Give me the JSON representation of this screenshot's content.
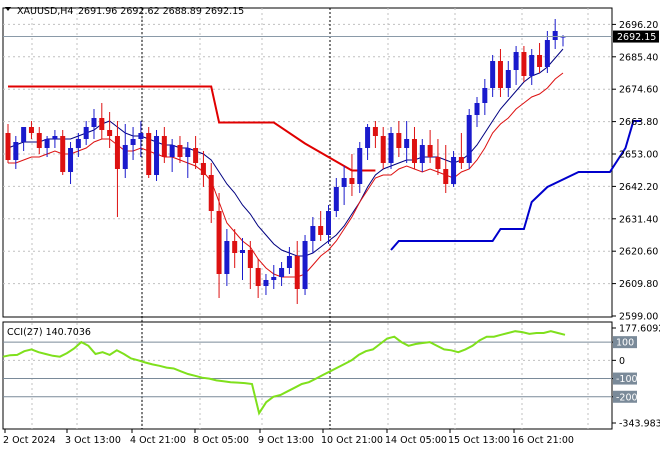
{
  "header": {
    "symbol": "XAUUSD,H4",
    "ohlc": "2691.96 2692.62 2688.89 2692.15"
  },
  "cci_panel": {
    "title": "CCI(27) 140.7036"
  },
  "colors": {
    "bull": "#1a1acc",
    "bear": "#dd1111",
    "sar_red": "#e00000",
    "sar_blue": "#0000cc",
    "ma_fast": "#dd1111",
    "ma_slow": "#000080",
    "cci": "#7fe01c",
    "level_line": "#7a8a99",
    "grid": "#c0c0c0",
    "tag_bg": "#000000"
  },
  "chart_data": [
    {
      "type": "candlestick",
      "title": "XAUUSD,H4",
      "ylim": [
        2599.0,
        2698.0
      ],
      "y_ticks": [
        "2696.20",
        "2685.40",
        "2674.60",
        "2663.80",
        "2653.00",
        "2642.20",
        "2631.40",
        "2620.60",
        "2609.80",
        "2599.00"
      ],
      "last_price": "2692.15",
      "x_ticks": [
        "2 Oct 2024",
        "3 Oct 13:00",
        "4 Oct 21:00",
        "8 Oct 05:00",
        "9 Oct 13:00",
        "10 Oct 21:00",
        "14 Oct 05:00",
        "15 Oct 13:00",
        "16 Oct 21:00"
      ],
      "candles": [
        [
          2660,
          2663,
          2650,
          2651
        ],
        [
          2651,
          2659,
          2648,
          2657
        ],
        [
          2657,
          2662,
          2654,
          2662
        ],
        [
          2662,
          2664,
          2658,
          2660
        ],
        [
          2660,
          2662,
          2653,
          2655
        ],
        [
          2655,
          2659,
          2652,
          2658
        ],
        [
          2658,
          2661,
          2655,
          2659
        ],
        [
          2659,
          2661,
          2646,
          2647
        ],
        [
          2647,
          2657,
          2643,
          2655
        ],
        [
          2655,
          2660,
          2652,
          2658
        ],
        [
          2658,
          2664,
          2656,
          2662
        ],
        [
          2662,
          2668,
          2658,
          2665
        ],
        [
          2665,
          2670,
          2658,
          2661
        ],
        [
          2661,
          2667,
          2655,
          2659
        ],
        [
          2659,
          2664,
          2632,
          2648
        ],
        [
          2648,
          2663,
          2645,
          2656
        ],
        [
          2656,
          2662,
          2651,
          2658
        ],
        [
          2658,
          2664,
          2652,
          2660
        ],
        [
          2660,
          2662,
          2645,
          2646
        ],
        [
          2646,
          2661,
          2644,
          2659
        ],
        [
          2659,
          2662,
          2650,
          2652
        ],
        [
          2652,
          2658,
          2647,
          2656
        ],
        [
          2656,
          2659,
          2650,
          2652
        ],
        [
          2652,
          2657,
          2645,
          2655
        ],
        [
          2655,
          2659,
          2648,
          2650
        ],
        [
          2650,
          2654,
          2642,
          2646
        ],
        [
          2646,
          2650,
          2630,
          2634
        ],
        [
          2634,
          2640,
          2605,
          2613
        ],
        [
          2613,
          2628,
          2609,
          2624
        ],
        [
          2624,
          2628,
          2615,
          2620
        ],
        [
          2620,
          2625,
          2611,
          2621
        ],
        [
          2621,
          2624,
          2608,
          2615
        ],
        [
          2615,
          2618,
          2605,
          2609
        ],
        [
          2609,
          2613,
          2606,
          2611
        ],
        [
          2611,
          2616,
          2608,
          2612
        ],
        [
          2612,
          2617,
          2609,
          2615
        ],
        [
          2615,
          2622,
          2613,
          2619
        ],
        [
          2619,
          2624,
          2603,
          2608
        ],
        [
          2608,
          2626,
          2606,
          2624
        ],
        [
          2624,
          2632,
          2620,
          2629
        ],
        [
          2629,
          2634,
          2624,
          2626
        ],
        [
          2626,
          2636,
          2623,
          2634
        ],
        [
          2634,
          2645,
          2632,
          2642
        ],
        [
          2642,
          2649,
          2636,
          2645
        ],
        [
          2645,
          2653,
          2639,
          2643
        ],
        [
          2643,
          2657,
          2640,
          2655
        ],
        [
          2655,
          2663,
          2651,
          2662
        ],
        [
          2662,
          2664,
          2655,
          2659
        ],
        [
          2659,
          2662,
          2648,
          2650
        ],
        [
          2650,
          2662,
          2648,
          2660
        ],
        [
          2660,
          2664,
          2652,
          2655
        ],
        [
          2655,
          2664,
          2650,
          2658
        ],
        [
          2658,
          2662,
          2648,
          2650
        ],
        [
          2650,
          2658,
          2647,
          2656
        ],
        [
          2656,
          2661,
          2650,
          2652
        ],
        [
          2652,
          2658,
          2646,
          2648
        ],
        [
          2648,
          2656,
          2640,
          2643
        ],
        [
          2643,
          2654,
          2642,
          2652
        ],
        [
          2652,
          2660,
          2648,
          2650
        ],
        [
          2650,
          2668,
          2648,
          2666
        ],
        [
          2666,
          2672,
          2662,
          2670
        ],
        [
          2670,
          2678,
          2666,
          2675
        ],
        [
          2675,
          2686,
          2672,
          2684
        ],
        [
          2684,
          2688,
          2672,
          2675
        ],
        [
          2675,
          2684,
          2672,
          2681
        ],
        [
          2681,
          2689,
          2676,
          2687
        ],
        [
          2687,
          2689,
          2677,
          2679
        ],
        [
          2679,
          2688,
          2676,
          2686
        ],
        [
          2686,
          2690,
          2680,
          2682
        ],
        [
          2682,
          2694,
          2680,
          2691
        ],
        [
          2691,
          2698,
          2688,
          2694
        ],
        [
          2691.96,
          2692.62,
          2688.89,
          2692.15
        ]
      ],
      "ma_fast": [
        2650,
        2650,
        2651,
        2652,
        2652,
        2653,
        2654,
        2653,
        2653,
        2654,
        2655,
        2657,
        2658,
        2658,
        2656,
        2654,
        2654,
        2655,
        2654,
        2653,
        2652,
        2652,
        2651,
        2650,
        2649,
        2647,
        2644,
        2637,
        2630,
        2627,
        2624,
        2622,
        2618,
        2615,
        2613,
        2612,
        2612,
        2612,
        2613,
        2616,
        2619,
        2621,
        2624,
        2628,
        2632,
        2637,
        2641,
        2645,
        2646,
        2646,
        2648,
        2649,
        2648,
        2647,
        2648,
        2647,
        2646,
        2645,
        2647,
        2648,
        2651,
        2655,
        2660,
        2663,
        2665,
        2668,
        2670,
        2672,
        2673,
        2675,
        2678,
        2680
      ],
      "ma_slow": [
        2655,
        2656,
        2657,
        2657,
        2657,
        2658,
        2658,
        2658,
        2658,
        2659,
        2660,
        2661,
        2663,
        2664,
        2662,
        2660,
        2659,
        2659,
        2658,
        2657,
        2656,
        2656,
        2655,
        2655,
        2654,
        2653,
        2651,
        2647,
        2643,
        2640,
        2636,
        2633,
        2629,
        2626,
        2623,
        2621,
        2620,
        2619,
        2619,
        2620,
        2622,
        2624,
        2626,
        2629,
        2633,
        2637,
        2642,
        2646,
        2648,
        2649,
        2650,
        2651,
        2651,
        2652,
        2652,
        2652,
        2651,
        2650,
        2651,
        2653,
        2656,
        2660,
        2664,
        2668,
        2671,
        2674,
        2677,
        2679,
        2680,
        2682,
        2685,
        2688
      ],
      "sar_red": [
        [
          0,
          2675.5
        ],
        [
          26,
          2675.5
        ],
        [
          27,
          2663.5
        ],
        [
          34,
          2663.5
        ],
        [
          38,
          2656.5
        ],
        [
          44,
          2647.5
        ],
        [
          47,
          2647.5
        ]
      ],
      "sar_blue": [
        [
          49,
          2621
        ],
        [
          50,
          2624
        ],
        [
          62,
          2624
        ],
        [
          63,
          2628
        ],
        [
          66,
          2628
        ],
        [
          67,
          2637
        ],
        [
          69,
          2642
        ],
        [
          73,
          2647
        ],
        [
          77,
          2647
        ],
        [
          79,
          2655
        ],
        [
          80,
          2664
        ],
        [
          81,
          2664
        ]
      ]
    },
    {
      "type": "line",
      "title": "CCI(27) 140.7036",
      "ylim": [
        -343.983,
        177.609
      ],
      "y_ticks": [
        "177.6092",
        "100",
        "0",
        "-100",
        "-200",
        "-343.983"
      ],
      "levels": [
        100,
        -100,
        -200
      ],
      "values": [
        20,
        28,
        30,
        50,
        60,
        45,
        35,
        25,
        20,
        40,
        65,
        100,
        80,
        35,
        45,
        30,
        55,
        35,
        10,
        0,
        -12,
        -22,
        -30,
        -40,
        -45,
        -60,
        -75,
        -85,
        -95,
        -100,
        -110,
        -115,
        -120,
        -122,
        -125,
        -130,
        -290,
        -230,
        -200,
        -190,
        -170,
        -150,
        -130,
        -120,
        -100,
        -80,
        -60,
        -40,
        -20,
        0,
        30,
        50,
        60,
        90,
        120,
        130,
        100,
        80,
        90,
        95,
        100,
        80,
        60,
        55,
        45,
        60,
        80,
        110,
        130,
        130,
        140,
        150,
        160,
        155,
        145,
        150,
        150,
        160,
        150,
        140
      ]
    }
  ]
}
